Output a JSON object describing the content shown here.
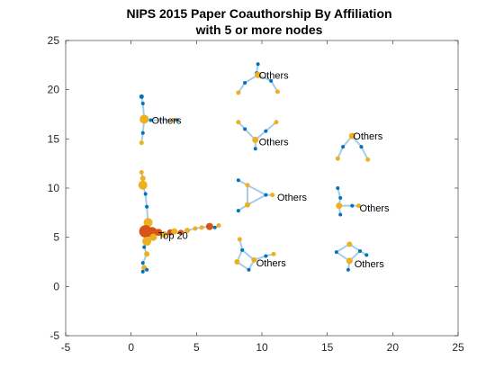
{
  "colors": {
    "edge": "#a5cde8",
    "node_blue": "#0072bd",
    "node_orange": "#edb120",
    "node_red": "#d95319",
    "axis": "#262626"
  },
  "chart_data": {
    "type": "scatter",
    "subtype": "network-graph",
    "title": "NIPS 2015 Paper Coauthorship By Affiliation",
    "subtitle": "with 5 or more nodes",
    "xlabel": "",
    "ylabel": "",
    "xlim": [
      -5,
      25
    ],
    "ylim": [
      -5,
      25
    ],
    "xticks": [
      -5,
      0,
      5,
      10,
      15,
      20,
      25
    ],
    "yticks": [
      -5,
      0,
      5,
      10,
      15,
      20,
      25
    ],
    "grid": false,
    "labels": [
      {
        "text": "Top 20",
        "x": 2.0,
        "y": 5.2
      },
      {
        "text": "Others",
        "x": 1.5,
        "y": 16.9
      },
      {
        "text": "Others",
        "x": 9.7,
        "y": 21.5
      },
      {
        "text": "Others",
        "x": 9.7,
        "y": 14.7
      },
      {
        "text": "Others",
        "x": 16.9,
        "y": 15.3
      },
      {
        "text": "Others",
        "x": 11.1,
        "y": 9.1
      },
      {
        "text": "Others",
        "x": 17.4,
        "y": 8.0
      },
      {
        "text": "Others",
        "x": 9.5,
        "y": 2.4
      },
      {
        "text": "Others",
        "x": 17.0,
        "y": 2.3
      }
    ],
    "nodes": [
      {
        "x": 0.8,
        "y": 19.3,
        "c": "blue",
        "s": 2.5
      },
      {
        "x": 0.9,
        "y": 18.6,
        "c": "blue",
        "s": 2
      },
      {
        "x": 1.0,
        "y": 17.0,
        "c": "orange",
        "s": 5
      },
      {
        "x": 0.9,
        "y": 15.6,
        "c": "blue",
        "s": 2
      },
      {
        "x": 0.8,
        "y": 14.6,
        "c": "orange",
        "s": 2.5
      },
      {
        "x": 1.5,
        "y": 16.9,
        "c": "blue",
        "s": 2
      },
      {
        "x": 3.2,
        "y": 16.9,
        "c": "orange",
        "s": 2.5
      },
      {
        "x": 3.5,
        "y": 16.9,
        "c": "blue",
        "s": 2
      },
      {
        "x": 0.8,
        "y": 11.6,
        "c": "orange",
        "s": 2.5
      },
      {
        "x": 0.9,
        "y": 11.0,
        "c": "orange",
        "s": 3
      },
      {
        "x": 0.9,
        "y": 10.3,
        "c": "orange",
        "s": 5
      },
      {
        "x": 1.1,
        "y": 9.4,
        "c": "blue",
        "s": 2
      },
      {
        "x": 1.2,
        "y": 8.1,
        "c": "blue",
        "s": 2
      },
      {
        "x": 1.3,
        "y": 6.5,
        "c": "orange",
        "s": 5
      },
      {
        "x": 1.1,
        "y": 5.6,
        "c": "red",
        "s": 7
      },
      {
        "x": 1.6,
        "y": 5.5,
        "c": "red",
        "s": 6
      },
      {
        "x": 1.2,
        "y": 4.6,
        "c": "orange",
        "s": 5
      },
      {
        "x": 1.7,
        "y": 5.0,
        "c": "orange",
        "s": 4
      },
      {
        "x": 2.1,
        "y": 5.5,
        "c": "red",
        "s": 4
      },
      {
        "x": 2.5,
        "y": 5.3,
        "c": "orange",
        "s": 3.5
      },
      {
        "x": 3.0,
        "y": 5.5,
        "c": "red",
        "s": 3.5
      },
      {
        "x": 3.3,
        "y": 5.6,
        "c": "orange",
        "s": 3.5
      },
      {
        "x": 3.8,
        "y": 5.5,
        "c": "red",
        "s": 3
      },
      {
        "x": 4.3,
        "y": 5.7,
        "c": "orange",
        "s": 3
      },
      {
        "x": 4.9,
        "y": 5.9,
        "c": "orange",
        "s": 2.5
      },
      {
        "x": 5.4,
        "y": 6.0,
        "c": "orange",
        "s": 2.5
      },
      {
        "x": 6.0,
        "y": 6.1,
        "c": "red",
        "s": 4
      },
      {
        "x": 6.4,
        "y": 6.0,
        "c": "blue",
        "s": 2
      },
      {
        "x": 6.7,
        "y": 6.2,
        "c": "orange",
        "s": 2.5
      },
      {
        "x": 1.0,
        "y": 4.0,
        "c": "blue",
        "s": 2
      },
      {
        "x": 1.2,
        "y": 3.3,
        "c": "orange",
        "s": 3
      },
      {
        "x": 0.9,
        "y": 2.4,
        "c": "blue",
        "s": 2
      },
      {
        "x": 1.0,
        "y": 1.9,
        "c": "orange",
        "s": 3
      },
      {
        "x": 1.2,
        "y": 1.7,
        "c": "blue",
        "s": 2
      },
      {
        "x": 0.9,
        "y": 1.5,
        "c": "blue",
        "s": 2
      },
      {
        "x": 9.7,
        "y": 22.6,
        "c": "blue",
        "s": 2
      },
      {
        "x": 9.6,
        "y": 21.7,
        "c": "blue",
        "s": 2
      },
      {
        "x": 9.7,
        "y": 21.5,
        "c": "orange",
        "s": 3.5
      },
      {
        "x": 8.7,
        "y": 20.7,
        "c": "blue",
        "s": 2
      },
      {
        "x": 8.2,
        "y": 19.7,
        "c": "orange",
        "s": 2.5
      },
      {
        "x": 10.7,
        "y": 20.9,
        "c": "blue",
        "s": 2
      },
      {
        "x": 11.2,
        "y": 19.8,
        "c": "orange",
        "s": 2.5
      },
      {
        "x": 8.2,
        "y": 16.7,
        "c": "orange",
        "s": 2.5
      },
      {
        "x": 8.7,
        "y": 16.0,
        "c": "blue",
        "s": 2
      },
      {
        "x": 9.5,
        "y": 14.9,
        "c": "orange",
        "s": 3.5
      },
      {
        "x": 10.3,
        "y": 15.8,
        "c": "blue",
        "s": 2
      },
      {
        "x": 11.1,
        "y": 16.7,
        "c": "orange",
        "s": 2.5
      },
      {
        "x": 9.5,
        "y": 14.0,
        "c": "blue",
        "s": 2
      },
      {
        "x": 16.9,
        "y": 15.3,
        "c": "orange",
        "s": 3.5
      },
      {
        "x": 16.2,
        "y": 14.2,
        "c": "blue",
        "s": 2
      },
      {
        "x": 15.8,
        "y": 13.0,
        "c": "orange",
        "s": 2.5
      },
      {
        "x": 17.6,
        "y": 14.2,
        "c": "blue",
        "s": 2
      },
      {
        "x": 18.1,
        "y": 12.9,
        "c": "orange",
        "s": 2.5
      },
      {
        "x": 8.2,
        "y": 10.8,
        "c": "blue",
        "s": 2
      },
      {
        "x": 8.9,
        "y": 10.3,
        "c": "orange",
        "s": 2.5
      },
      {
        "x": 10.3,
        "y": 9.3,
        "c": "blue",
        "s": 2
      },
      {
        "x": 10.8,
        "y": 9.3,
        "c": "orange",
        "s": 2.5
      },
      {
        "x": 8.9,
        "y": 8.3,
        "c": "orange",
        "s": 3
      },
      {
        "x": 8.2,
        "y": 7.7,
        "c": "blue",
        "s": 2
      },
      {
        "x": 15.8,
        "y": 10.0,
        "c": "blue",
        "s": 2
      },
      {
        "x": 16.0,
        "y": 9.0,
        "c": "blue",
        "s": 2
      },
      {
        "x": 15.9,
        "y": 8.2,
        "c": "orange",
        "s": 3.5
      },
      {
        "x": 16.0,
        "y": 7.3,
        "c": "blue",
        "s": 2
      },
      {
        "x": 16.9,
        "y": 8.2,
        "c": "blue",
        "s": 2
      },
      {
        "x": 17.4,
        "y": 8.2,
        "c": "orange",
        "s": 2.5
      },
      {
        "x": 8.3,
        "y": 4.8,
        "c": "orange",
        "s": 2.5
      },
      {
        "x": 8.5,
        "y": 3.7,
        "c": "blue",
        "s": 2
      },
      {
        "x": 8.1,
        "y": 2.5,
        "c": "orange",
        "s": 3
      },
      {
        "x": 9.0,
        "y": 1.7,
        "c": "blue",
        "s": 2
      },
      {
        "x": 9.4,
        "y": 2.7,
        "c": "orange",
        "s": 3
      },
      {
        "x": 10.3,
        "y": 3.1,
        "c": "blue",
        "s": 2
      },
      {
        "x": 10.9,
        "y": 3.3,
        "c": "orange",
        "s": 2.5
      },
      {
        "x": 16.7,
        "y": 4.3,
        "c": "orange",
        "s": 3
      },
      {
        "x": 15.7,
        "y": 3.5,
        "c": "blue",
        "s": 2
      },
      {
        "x": 17.5,
        "y": 3.6,
        "c": "blue",
        "s": 2
      },
      {
        "x": 16.7,
        "y": 2.6,
        "c": "orange",
        "s": 3.5
      },
      {
        "x": 16.6,
        "y": 1.7,
        "c": "blue",
        "s": 2
      },
      {
        "x": 18.0,
        "y": 3.2,
        "c": "blue",
        "s": 2
      }
    ],
    "edges": [
      [
        0,
        1
      ],
      [
        1,
        2
      ],
      [
        2,
        3
      ],
      [
        3,
        4
      ],
      [
        2,
        5
      ],
      [
        5,
        6
      ],
      [
        6,
        7
      ],
      [
        8,
        9
      ],
      [
        9,
        10
      ],
      [
        10,
        11
      ],
      [
        11,
        12
      ],
      [
        12,
        13
      ],
      [
        13,
        14
      ],
      [
        14,
        15
      ],
      [
        14,
        16
      ],
      [
        15,
        17
      ],
      [
        15,
        18
      ],
      [
        18,
        19
      ],
      [
        19,
        20
      ],
      [
        20,
        21
      ],
      [
        21,
        22
      ],
      [
        22,
        23
      ],
      [
        23,
        24
      ],
      [
        24,
        25
      ],
      [
        25,
        26
      ],
      [
        26,
        27
      ],
      [
        27,
        28
      ],
      [
        16,
        29
      ],
      [
        29,
        30
      ],
      [
        30,
        31
      ],
      [
        31,
        32
      ],
      [
        32,
        33
      ],
      [
        32,
        34
      ],
      [
        35,
        36
      ],
      [
        36,
        37
      ],
      [
        37,
        38
      ],
      [
        38,
        39
      ],
      [
        37,
        40
      ],
      [
        40,
        41
      ],
      [
        42,
        43
      ],
      [
        43,
        44
      ],
      [
        44,
        45
      ],
      [
        45,
        46
      ],
      [
        44,
        47
      ],
      [
        48,
        49
      ],
      [
        49,
        50
      ],
      [
        48,
        51
      ],
      [
        51,
        52
      ],
      [
        53,
        54
      ],
      [
        54,
        55
      ],
      [
        55,
        56
      ],
      [
        55,
        57
      ],
      [
        57,
        58
      ],
      [
        54,
        57
      ],
      [
        59,
        60
      ],
      [
        60,
        61
      ],
      [
        61,
        62
      ],
      [
        61,
        63
      ],
      [
        63,
        64
      ],
      [
        65,
        66
      ],
      [
        66,
        67
      ],
      [
        67,
        68
      ],
      [
        68,
        69
      ],
      [
        69,
        70
      ],
      [
        70,
        71
      ],
      [
        66,
        69
      ],
      [
        72,
        73
      ],
      [
        72,
        74
      ],
      [
        73,
        75
      ],
      [
        74,
        75
      ],
      [
        75,
        76
      ],
      [
        74,
        77
      ]
    ]
  }
}
